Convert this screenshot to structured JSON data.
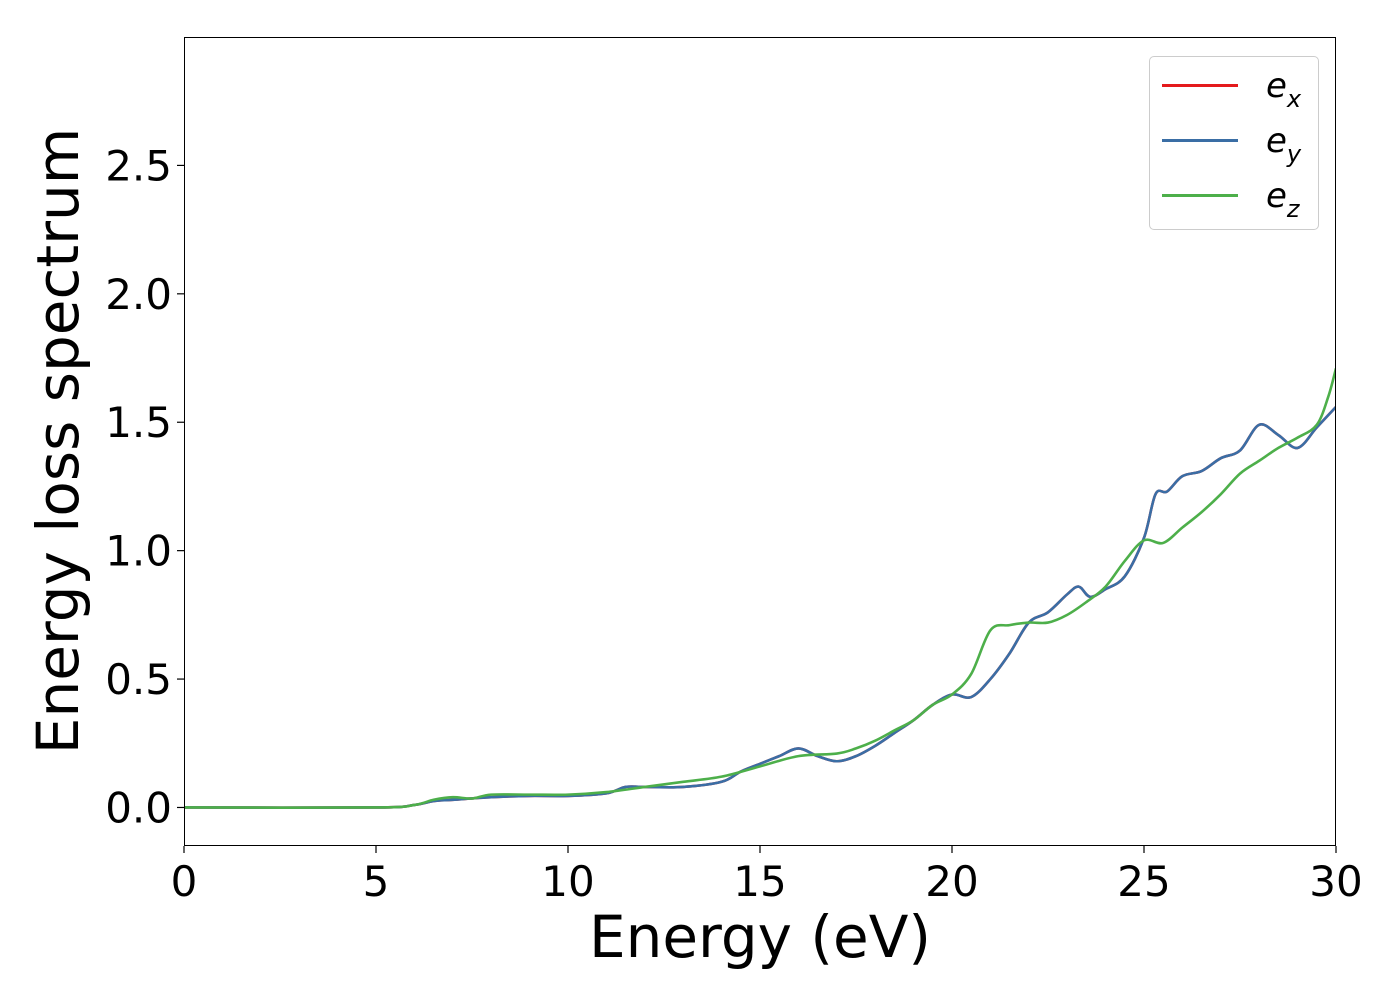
{
  "chart_data": {
    "type": "line",
    "xlabel": "Energy (eV)",
    "ylabel": "Energy loss spectrum",
    "xlim": [
      0,
      30
    ],
    "ylim": [
      -0.15,
      3.0
    ],
    "xticks": [
      0,
      5,
      10,
      15,
      20,
      25,
      30
    ],
    "xtick_labels": [
      "0",
      "5",
      "10",
      "15",
      "20",
      "25",
      "30"
    ],
    "yticks": [
      0.0,
      0.5,
      1.0,
      1.5,
      2.0,
      2.5
    ],
    "ytick_labels": [
      "0.0",
      "0.5",
      "1.0",
      "1.5",
      "2.0",
      "2.5"
    ],
    "grid": false,
    "legend_position": "top-right",
    "series": [
      {
        "name": "e_x",
        "label_base": "e",
        "label_sub": "x",
        "color": "#e41a1c",
        "x": [
          0,
          5,
          6,
          6.5,
          7,
          8,
          9,
          10,
          11,
          11.5,
          12,
          13,
          14,
          14.5,
          15,
          15.5,
          16,
          16.5,
          17,
          17.5,
          18,
          18.5,
          19,
          19.5,
          20,
          20.5,
          21,
          21.5,
          22,
          22.5,
          23,
          23.3,
          23.6,
          24,
          24.5,
          25,
          25.3,
          25.6,
          26,
          26.5,
          27,
          27.5,
          28,
          28.5,
          29,
          29.5,
          30
        ],
        "y": [
          0.0,
          0.0,
          0.01,
          0.025,
          0.03,
          0.04,
          0.045,
          0.045,
          0.055,
          0.08,
          0.08,
          0.08,
          0.1,
          0.14,
          0.17,
          0.2,
          0.23,
          0.2,
          0.18,
          0.2,
          0.24,
          0.29,
          0.34,
          0.4,
          0.44,
          0.43,
          0.5,
          0.6,
          0.72,
          0.76,
          0.83,
          0.86,
          0.82,
          0.85,
          0.9,
          1.05,
          1.22,
          1.23,
          1.29,
          1.31,
          1.36,
          1.39,
          1.49,
          1.45,
          1.4,
          1.48,
          1.56
        ]
      },
      {
        "name": "e_y",
        "label_base": "e",
        "label_sub": "y",
        "color": "#3a6ea5",
        "x": [
          0,
          5,
          6,
          6.5,
          7,
          8,
          9,
          10,
          11,
          11.5,
          12,
          13,
          14,
          14.5,
          15,
          15.5,
          16,
          16.5,
          17,
          17.5,
          18,
          18.5,
          19,
          19.5,
          20,
          20.5,
          21,
          21.5,
          22,
          22.5,
          23,
          23.3,
          23.6,
          24,
          24.5,
          25,
          25.3,
          25.6,
          26,
          26.5,
          27,
          27.5,
          28,
          28.5,
          29,
          29.5,
          30
        ],
        "y": [
          0.0,
          0.0,
          0.01,
          0.025,
          0.03,
          0.04,
          0.045,
          0.045,
          0.055,
          0.08,
          0.08,
          0.08,
          0.1,
          0.14,
          0.17,
          0.2,
          0.23,
          0.2,
          0.18,
          0.2,
          0.24,
          0.29,
          0.34,
          0.4,
          0.44,
          0.43,
          0.5,
          0.6,
          0.72,
          0.76,
          0.83,
          0.86,
          0.82,
          0.85,
          0.9,
          1.05,
          1.22,
          1.23,
          1.29,
          1.31,
          1.36,
          1.39,
          1.49,
          1.45,
          1.4,
          1.48,
          1.56
        ]
      },
      {
        "name": "e_z",
        "label_base": "e",
        "label_sub": "z",
        "color": "#4daf4a",
        "x": [
          0,
          5,
          6,
          6.5,
          7,
          7.5,
          8,
          9,
          10,
          11,
          12,
          13,
          14,
          15,
          16,
          17,
          17.5,
          18,
          18.5,
          19,
          19.5,
          20,
          20.5,
          21,
          21.5,
          22,
          22.5,
          23,
          23.5,
          24,
          24.5,
          25,
          25.5,
          26,
          26.5,
          27,
          27.5,
          28,
          28.5,
          29,
          29.5,
          29.8,
          30
        ],
        "y": [
          0.0,
          0.0,
          0.01,
          0.03,
          0.04,
          0.035,
          0.05,
          0.05,
          0.05,
          0.06,
          0.08,
          0.1,
          0.12,
          0.16,
          0.2,
          0.21,
          0.23,
          0.26,
          0.3,
          0.34,
          0.4,
          0.44,
          0.52,
          0.69,
          0.71,
          0.72,
          0.72,
          0.75,
          0.8,
          0.86,
          0.96,
          1.04,
          1.03,
          1.09,
          1.15,
          1.22,
          1.3,
          1.35,
          1.4,
          1.44,
          1.49,
          1.6,
          1.71
        ]
      }
    ]
  }
}
